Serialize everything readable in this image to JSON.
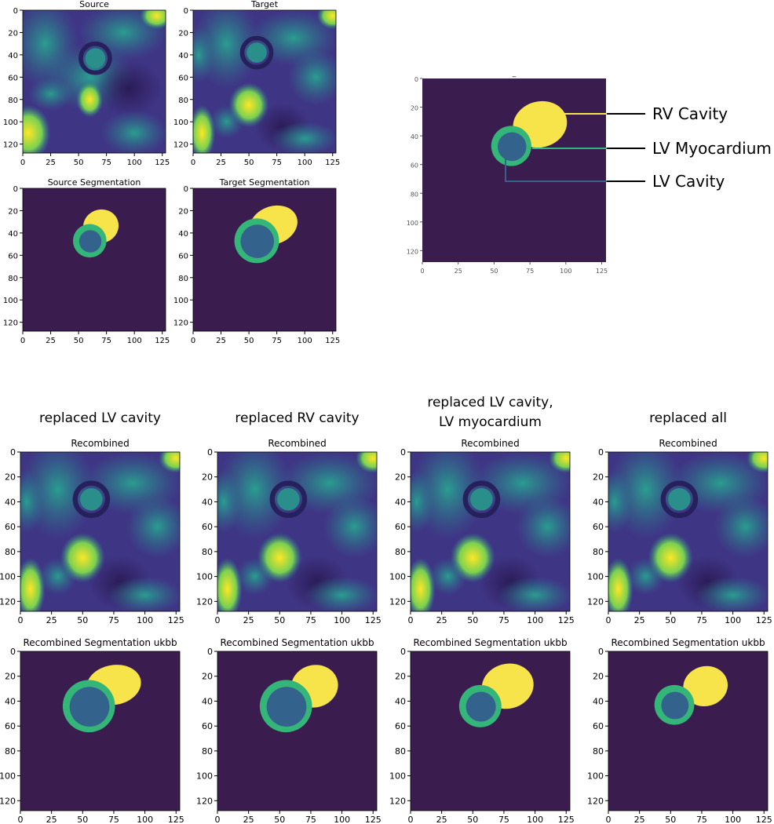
{
  "palette": {
    "background": "#3b1c4e",
    "lv_cavity": "#33638d",
    "lv_myocardium": "#34b679",
    "rv_cavity": "#f7e34a",
    "mri_dark": "#3f3585",
    "mri_mid": "#2e6f8e",
    "mri_bright": "#7ad151",
    "mri_peak": "#fde725"
  },
  "panels": {
    "source": {
      "title": "Source"
    },
    "target": {
      "title": "Target"
    },
    "source_seg": {
      "title": "Source Segmentation"
    },
    "target_seg": {
      "title": "Target Segmentation"
    }
  },
  "legend": {
    "title": "_",
    "labels": [
      "RV Cavity",
      "LV Myocardium",
      "LV Cavity"
    ],
    "x_ticks": [
      "0",
      "25",
      "50",
      "75",
      "100",
      "125"
    ],
    "y_ticks": [
      "0",
      "20",
      "40",
      "60",
      "80",
      "100",
      "120"
    ]
  },
  "axes": {
    "x_ticks": [
      "0",
      "25",
      "50",
      "75",
      "100",
      "125"
    ],
    "y_ticks": [
      "0",
      "20",
      "40",
      "60",
      "80",
      "100",
      "120"
    ]
  },
  "columns": [
    {
      "heading": "replaced LV cavity",
      "heading2": "",
      "img_title": "Recombined",
      "seg_title": "Recombined Segmentation ukbb"
    },
    {
      "heading": "replaced RV cavity",
      "heading2": "",
      "img_title": "Recombined",
      "seg_title": "Recombined Segmentation ukbb"
    },
    {
      "heading": "replaced LV cavity,",
      "heading2": "LV myocardium",
      "img_title": "Recombined",
      "seg_title": "Recombined Segmentation ukbb"
    },
    {
      "heading": "replaced all",
      "heading2": "",
      "img_title": "Recombined",
      "seg_title": "Recombined Segmentation ukbb"
    }
  ]
}
